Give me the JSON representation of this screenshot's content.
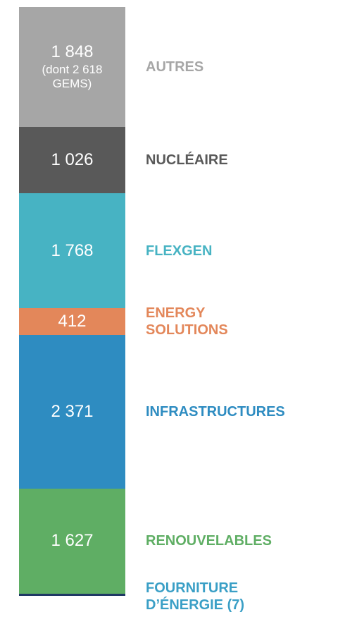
{
  "chart_data": {
    "type": "stacked-bar",
    "series": [
      {
        "name": "FOURNITURE D’ÉNERGIE (7)",
        "color": "#1f3864",
        "label_color": "#3a9fc6",
        "values": [
          30
        ],
        "value_labels": [
          null
        ]
      },
      {
        "name": "RENOUVELABLES",
        "color": "#5fae64",
        "label_color": "#5fae64",
        "values": [
          1627
        ],
        "value_labels": [
          "1 627"
        ]
      },
      {
        "name": "INFRASTRUCTURES",
        "color": "#2e8cc1",
        "label_color": "#2e8cc1",
        "values": [
          2371
        ],
        "value_labels": [
          "2 371"
        ]
      },
      {
        "name": "ENERGY SOLUTIONS",
        "color": "#e3875a",
        "label_color": "#e3875a",
        "values": [
          412
        ],
        "value_labels": [
          "412"
        ]
      },
      {
        "name": "FLEXGEN",
        "color": "#47b3c3",
        "label_color": "#47b3c3",
        "values": [
          1768
        ],
        "value_labels": [
          "1 768"
        ]
      },
      {
        "name": "NUCLÉAIRE",
        "color": "#595959",
        "label_color": "#595959",
        "values": [
          1026
        ],
        "value_labels": [
          "1 026"
        ]
      },
      {
        "name": "AUTRES",
        "color": "#a6a6a6",
        "label_color": "#a6a6a6",
        "values": [
          1848
        ],
        "value_labels": [
          "1 848"
        ],
        "note": "(dont 2 618 GEMS)"
      }
    ]
  }
}
